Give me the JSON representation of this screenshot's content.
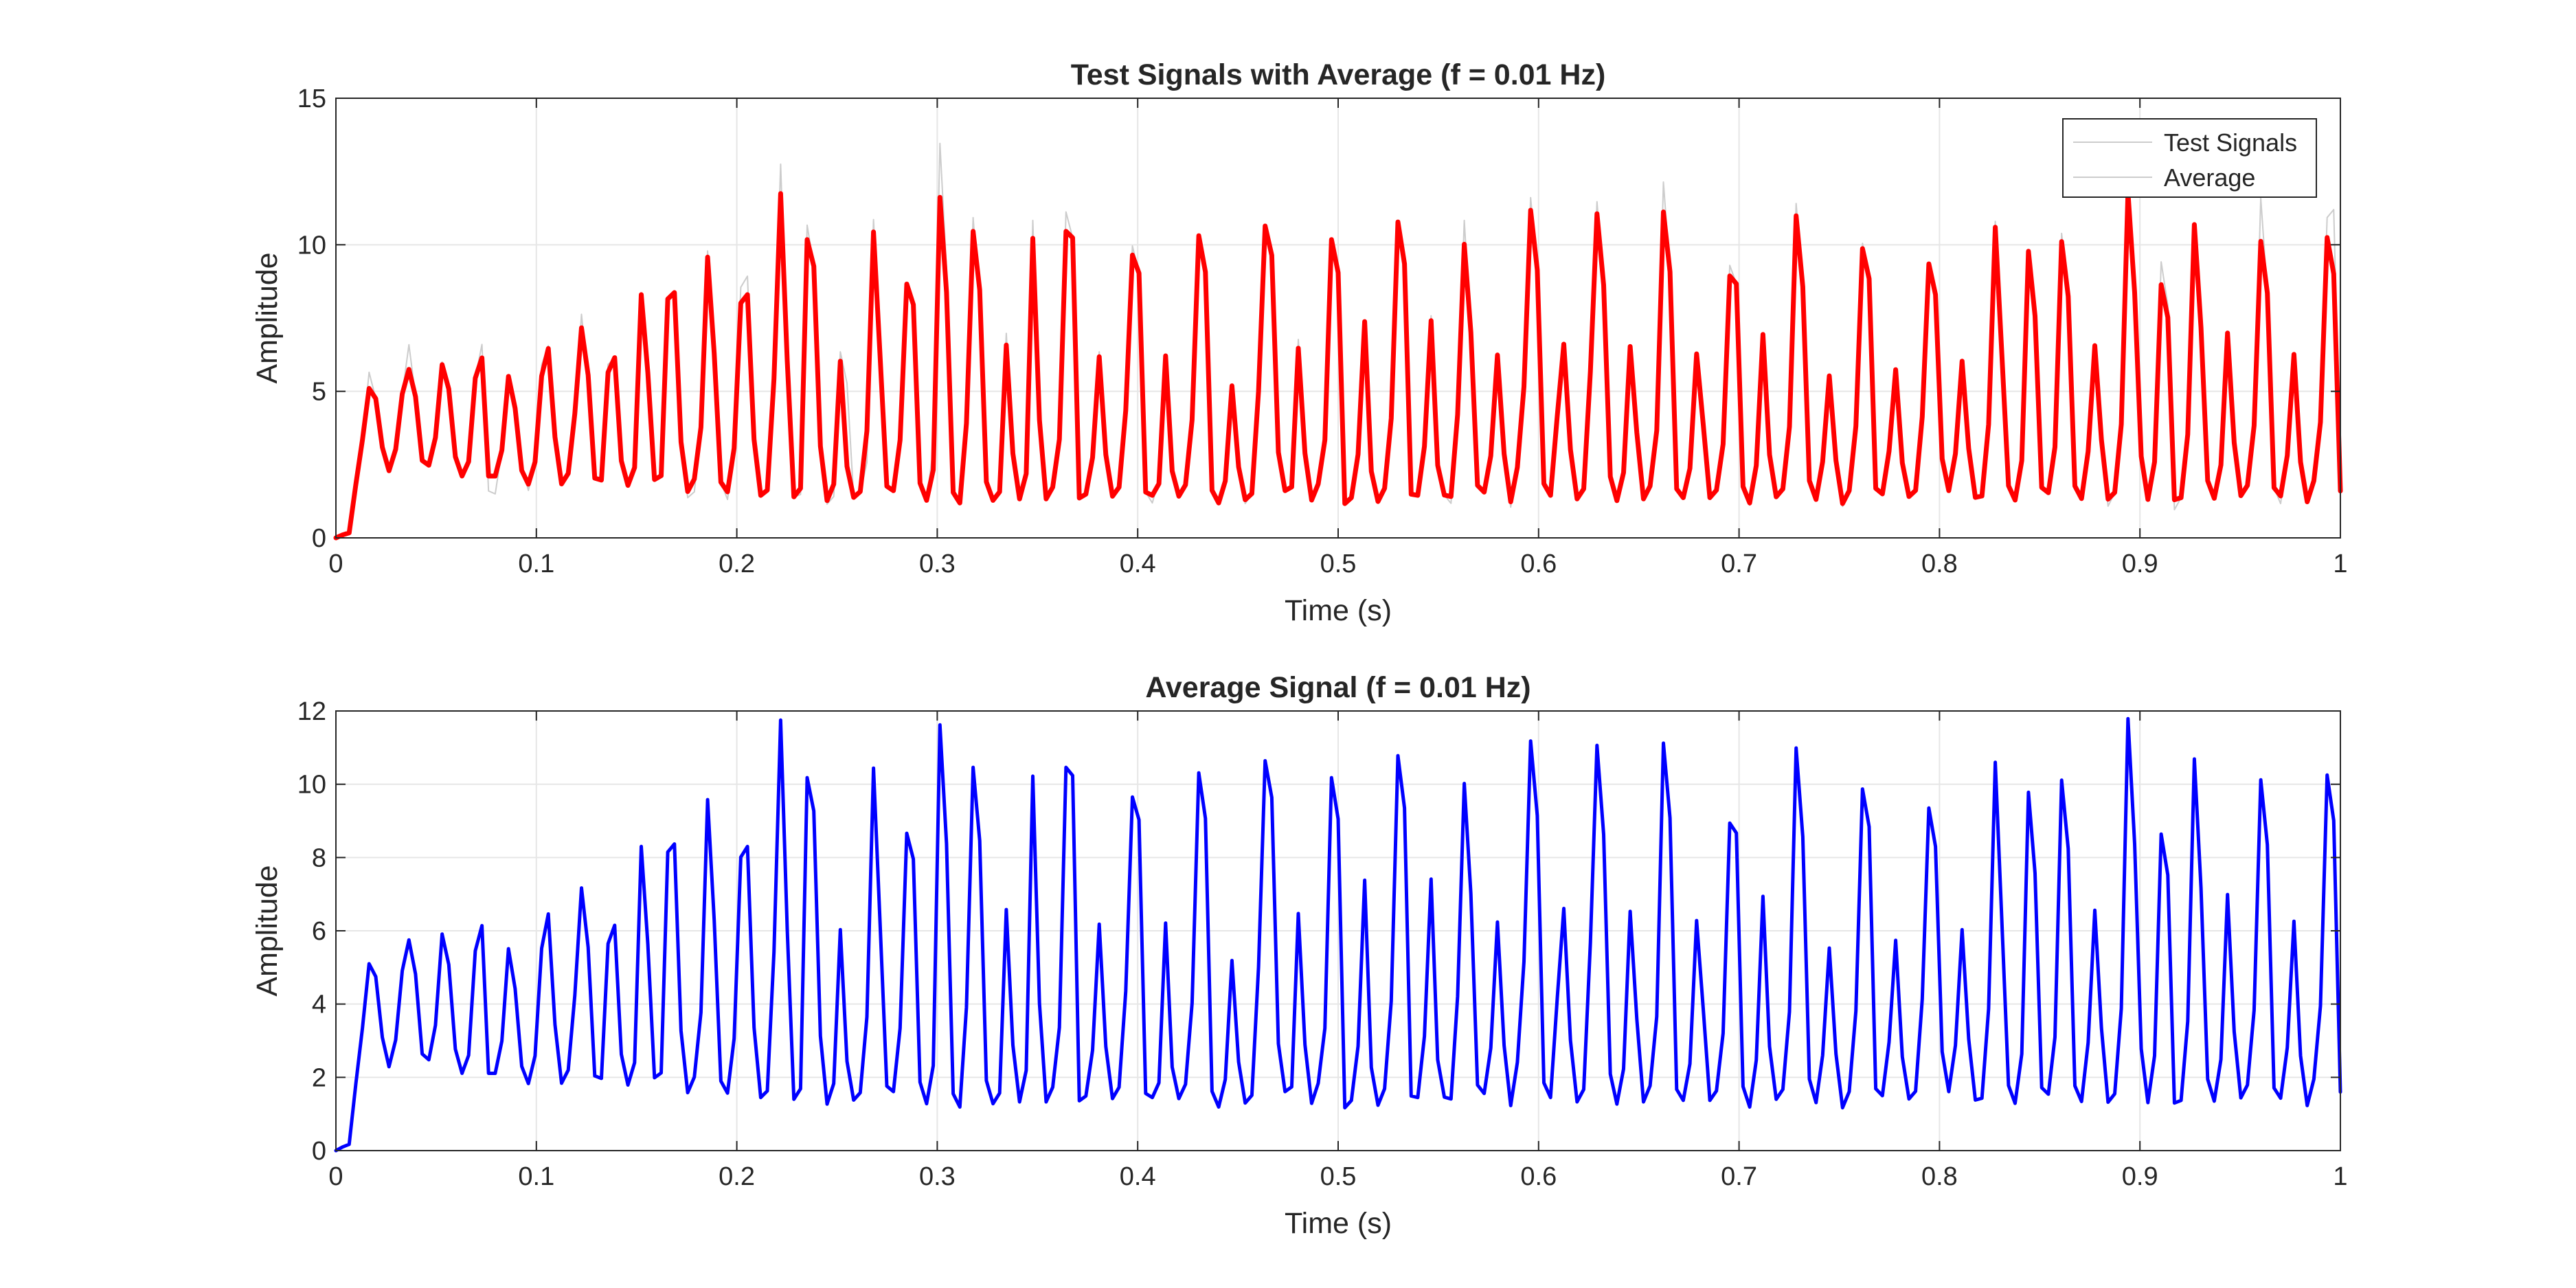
{
  "figure": {
    "background": "#ffffff"
  },
  "chart_data": [
    {
      "type": "line",
      "title": "Test Signals with Average (f = 0.01 Hz)",
      "xlabel": "Time (s)",
      "ylabel": "Amplitude",
      "xlim": [
        0,
        1
      ],
      "ylim": [
        0,
        15
      ],
      "xticks": [
        "0",
        "0.1",
        "0.2",
        "0.3",
        "0.4",
        "0.5",
        "0.6",
        "0.7",
        "0.8",
        "0.9",
        "1"
      ],
      "yticks": [
        "0",
        "5",
        "10",
        "15"
      ],
      "grid": true,
      "legend": {
        "placement": "top-right",
        "entries": [
          "Test Signals",
          "Average"
        ]
      },
      "series": [
        {
          "name": "Test Signals",
          "color": "#cccccc",
          "style": "thin",
          "values": [
            0,
            0.1,
            0.17,
            1.82,
            3.34,
            5.65,
            4.75,
            3.09,
            2.29,
            3.02,
            4.91,
            6.59,
            4.82,
            2.64,
            2.48,
            3.42,
            6.0,
            4.75,
            2.77,
            2.11,
            2.6,
            5.45,
            6.6,
            1.6,
            1.5,
            2.99,
            5.51,
            4.42,
            2.45,
            1.62,
            2.59,
            5.9,
            6.56,
            3.44,
            1.84,
            2.2,
            4.24,
            7.63,
            5.31,
            2.04,
            1.97,
            5.92,
            6.11,
            2.63,
            1.79,
            2.4,
            8.3,
            5.63,
            1.99,
            2.12,
            8.15,
            8.37,
            3.27,
            1.37,
            1.57,
            3.77,
            9.79,
            6.29,
            1.9,
            1.31,
            3.06,
            8.55,
            8.93,
            3.36,
            1.45,
            1.63,
            5.42,
            12.75,
            6.05,
            1.4,
            1.48,
            10.67,
            9.27,
            3.39,
            1.15,
            1.41,
            6.35,
            5.28,
            1.38,
            1.51,
            2.57,
            10.86,
            6.5,
            1.76,
            1.61,
            3.45,
            8.48,
            7.96,
            1.87,
            1.28,
            3.05,
            13.46,
            9.17,
            1.55,
            1.15,
            3.91,
            10.93,
            7.97,
            1.91,
            1.28,
            1.64,
            6.98,
            2.86,
            1.31,
            2.19,
            10.83,
            4.02,
            1.31,
            1.81,
            3.58,
            11.12,
            10.24,
            1.36,
            1.49,
            2.87,
            6.35,
            3.33,
            1.44,
            1.76,
            4.35,
            9.96,
            9.03,
            1.56,
            1.19,
            2.0,
            6.07,
            2.28,
            1.36,
            1.81,
            4.03,
            10.31,
            9.07,
            1.62,
            1.19,
            1.94,
            5.19,
            2.42,
            1.17,
            1.51,
            5.0,
            10.37,
            9.64,
            2.92,
            1.61,
            1.74,
            6.77,
            2.89,
            1.29,
            1.77,
            3.34,
            10.02,
            8.84,
            1.17,
            1.37,
            2.85,
            7.16,
            2.27,
            1.24,
            1.67,
            4.08,
            10.49,
            9.35,
            1.49,
            1.43,
            3.12,
            7.58,
            2.53,
            1.46,
            1.18,
            4.21,
            10.83,
            7.01,
            1.79,
            1.56,
            2.8,
            6.24,
            2.87,
            1.05,
            2.41,
            5.16,
            11.61,
            9.14,
            1.85,
            1.45,
            4.14,
            6.61,
            3.01,
            1.33,
            1.67,
            5.67,
            11.47,
            8.63,
            2.09,
            1.21,
            2.23,
            6.53,
            3.59,
            1.33,
            1.77,
            3.66,
            12.14,
            9.08,
            1.67,
            1.37,
            2.37,
            6.28,
            3.89,
            1.37,
            1.63,
            3.2,
            9.3,
            8.67,
            1.75,
            1.11,
            2.47,
            6.94,
            2.84,
            1.4,
            1.67,
            3.79,
            11.41,
            8.57,
            1.95,
            1.31,
            2.6,
            5.53,
            2.64,
            1.07,
            1.61,
            3.81,
            10.05,
            8.84,
            1.69,
            1.5,
            2.96,
            5.74,
            2.56,
            1.41,
            1.62,
            4.13,
            9.35,
            8.3,
            2.7,
            1.61,
            2.87,
            6.03,
            3.05,
            1.38,
            1.43,
            3.87,
            10.8,
            6.26,
            1.78,
            1.29,
            2.64,
            9.78,
            7.57,
            1.72,
            1.54,
            3.1,
            10.39,
            8.24,
            1.77,
            1.34,
            2.95,
            6.56,
            3.34,
            1.08,
            1.55,
            3.88,
            11.58,
            8.37,
            2.78,
            1.31,
            2.59,
            9.42,
            7.93,
            0.96,
            1.37,
            3.53,
            10.65,
            7.17,
            1.95,
            1.35,
            2.49,
            6.8,
            3.25,
            1.44,
            1.79,
            3.83,
            11.59,
            8.35,
            1.71,
            1.17,
            2.81,
            6.26,
            2.59,
            1.23,
            1.95,
            3.95,
            10.93,
            11.2,
            2.12
          ]
        },
        {
          "name": "Average",
          "color": "#ff0000",
          "style": "thick",
          "values": [
            0,
            0.1,
            0.17,
            1.82,
            3.34,
            5.1,
            4.75,
            3.09,
            2.29,
            3.02,
            4.91,
            5.75,
            4.82,
            2.64,
            2.48,
            3.42,
            5.91,
            5.08,
            2.77,
            2.11,
            2.6,
            5.45,
            6.14,
            2.11,
            2.11,
            2.99,
            5.51,
            4.42,
            2.3,
            1.83,
            2.59,
            5.52,
            6.46,
            3.44,
            1.84,
            2.2,
            4.24,
            7.17,
            5.55,
            2.04,
            1.97,
            5.65,
            6.15,
            2.63,
            1.79,
            2.4,
            8.3,
            5.63,
            1.99,
            2.12,
            8.15,
            8.37,
            3.27,
            1.58,
            2.01,
            3.77,
            9.58,
            6.29,
            1.9,
            1.57,
            3.06,
            8.01,
            8.3,
            3.36,
            1.45,
            1.63,
            5.42,
            11.75,
            6.05,
            1.4,
            1.69,
            10.18,
            9.27,
            3.13,
            1.27,
            1.83,
            6.03,
            2.44,
            1.38,
            1.58,
            3.65,
            10.44,
            6.14,
            1.76,
            1.61,
            3.34,
            8.66,
            7.96,
            1.87,
            1.28,
            2.32,
            11.62,
            8.38,
            1.55,
            1.19,
            3.91,
            10.46,
            8.46,
            1.91,
            1.28,
            1.57,
            6.58,
            2.88,
            1.33,
            2.19,
            10.22,
            4.02,
            1.33,
            1.73,
            3.36,
            10.46,
            10.24,
            1.36,
            1.49,
            2.74,
            6.18,
            2.84,
            1.42,
            1.73,
            4.35,
            9.65,
            9.03,
            1.56,
            1.45,
            1.85,
            6.21,
            2.28,
            1.42,
            1.81,
            4.03,
            10.31,
            9.07,
            1.62,
            1.19,
            1.94,
            5.19,
            2.42,
            1.3,
            1.51,
            5.0,
            10.64,
            9.64,
            2.92,
            1.61,
            1.74,
            6.47,
            2.89,
            1.29,
            1.84,
            3.34,
            10.18,
            9.05,
            1.17,
            1.37,
            2.85,
            7.38,
            2.27,
            1.24,
            1.69,
            4.08,
            10.78,
            9.35,
            1.49,
            1.45,
            3.12,
            7.41,
            2.48,
            1.46,
            1.41,
            4.21,
            10.02,
            7.01,
            1.79,
            1.56,
            2.8,
            6.24,
            2.87,
            1.23,
            2.41,
            5.16,
            11.18,
            9.14,
            1.85,
            1.45,
            4.14,
            6.61,
            3.01,
            1.33,
            1.67,
            5.67,
            11.06,
            8.63,
            2.09,
            1.27,
            2.23,
            6.53,
            3.59,
            1.33,
            1.77,
            3.66,
            11.12,
            9.08,
            1.67,
            1.37,
            2.37,
            6.28,
            3.89,
            1.37,
            1.63,
            3.2,
            8.94,
            8.67,
            1.75,
            1.19,
            2.47,
            6.94,
            2.84,
            1.4,
            1.67,
            3.79,
            10.99,
            8.57,
            1.95,
            1.31,
            2.6,
            5.53,
            2.64,
            1.17,
            1.61,
            3.81,
            9.87,
            8.84,
            1.69,
            1.5,
            2.96,
            5.74,
            2.56,
            1.41,
            1.62,
            4.13,
            9.35,
            8.3,
            2.7,
            1.61,
            2.87,
            6.03,
            3.05,
            1.38,
            1.43,
            3.87,
            10.6,
            6.26,
            1.78,
            1.29,
            2.64,
            9.78,
            7.57,
            1.72,
            1.54,
            3.1,
            10.11,
            8.24,
            1.77,
            1.34,
            2.95,
            6.56,
            3.34,
            1.32,
            1.55,
            3.88,
            11.79,
            8.37,
            2.78,
            1.31,
            2.59,
            8.64,
            7.52,
            1.3,
            1.37,
            3.53,
            10.69,
            7.17,
            1.95,
            1.35,
            2.49,
            6.99,
            3.25,
            1.44,
            1.79,
            3.83,
            10.12,
            8.35,
            1.71,
            1.43,
            2.81,
            6.26,
            2.59,
            1.23,
            1.95,
            3.95,
            10.25,
            9.01,
            1.6
          ]
        }
      ]
    },
    {
      "type": "line",
      "title": "Average Signal (f = 0.01 Hz)",
      "xlabel": "Time (s)",
      "ylabel": "Amplitude",
      "xlim": [
        0,
        1
      ],
      "ylim": [
        0,
        12
      ],
      "xticks": [
        "0",
        "0.1",
        "0.2",
        "0.3",
        "0.4",
        "0.5",
        "0.6",
        "0.7",
        "0.8",
        "0.9",
        "1"
      ],
      "yticks": [
        "0",
        "2",
        "4",
        "6",
        "8",
        "10",
        "12"
      ],
      "grid": true,
      "series": [
        {
          "color": "#0000ff",
          "style": "medium",
          "values": [
            0,
            0.1,
            0.17,
            1.82,
            3.34,
            5.1,
            4.75,
            3.09,
            2.29,
            3.02,
            4.91,
            5.75,
            4.82,
            2.64,
            2.48,
            3.42,
            5.91,
            5.08,
            2.77,
            2.11,
            2.6,
            5.45,
            6.14,
            2.11,
            2.11,
            2.99,
            5.51,
            4.42,
            2.3,
            1.83,
            2.59,
            5.52,
            6.46,
            3.44,
            1.84,
            2.2,
            4.24,
            7.17,
            5.55,
            2.04,
            1.97,
            5.65,
            6.15,
            2.63,
            1.79,
            2.4,
            8.3,
            5.63,
            1.99,
            2.12,
            8.15,
            8.37,
            3.27,
            1.58,
            2.01,
            3.77,
            9.58,
            6.29,
            1.9,
            1.57,
            3.06,
            8.01,
            8.3,
            3.36,
            1.45,
            1.63,
            5.42,
            11.75,
            6.05,
            1.4,
            1.69,
            10.18,
            9.27,
            3.13,
            1.27,
            1.83,
            6.03,
            2.44,
            1.38,
            1.58,
            3.65,
            10.44,
            6.14,
            1.76,
            1.61,
            3.34,
            8.66,
            7.96,
            1.87,
            1.28,
            2.32,
            11.62,
            8.38,
            1.55,
            1.19,
            3.91,
            10.46,
            8.46,
            1.91,
            1.28,
            1.57,
            6.58,
            2.88,
            1.33,
            2.19,
            10.22,
            4.02,
            1.33,
            1.73,
            3.36,
            10.46,
            10.24,
            1.36,
            1.49,
            2.74,
            6.18,
            2.84,
            1.42,
            1.73,
            4.35,
            9.65,
            9.03,
            1.56,
            1.45,
            1.85,
            6.21,
            2.28,
            1.42,
            1.81,
            4.03,
            10.31,
            9.07,
            1.62,
            1.19,
            1.94,
            5.19,
            2.42,
            1.3,
            1.51,
            5.0,
            10.64,
            9.64,
            2.92,
            1.61,
            1.74,
            6.47,
            2.89,
            1.29,
            1.84,
            3.34,
            10.18,
            9.05,
            1.17,
            1.37,
            2.85,
            7.38,
            2.27,
            1.24,
            1.69,
            4.08,
            10.78,
            9.35,
            1.49,
            1.45,
            3.12,
            7.41,
            2.48,
            1.46,
            1.41,
            4.21,
            10.02,
            7.01,
            1.79,
            1.56,
            2.8,
            6.24,
            2.87,
            1.23,
            2.41,
            5.16,
            11.18,
            9.14,
            1.85,
            1.45,
            4.14,
            6.61,
            3.01,
            1.33,
            1.67,
            5.67,
            11.06,
            8.63,
            2.09,
            1.27,
            2.23,
            6.53,
            3.59,
            1.33,
            1.77,
            3.66,
            11.12,
            9.08,
            1.67,
            1.37,
            2.37,
            6.28,
            3.89,
            1.37,
            1.63,
            3.2,
            8.94,
            8.67,
            1.75,
            1.19,
            2.47,
            6.94,
            2.84,
            1.4,
            1.67,
            3.79,
            10.99,
            8.57,
            1.95,
            1.31,
            2.6,
            5.53,
            2.64,
            1.17,
            1.61,
            3.81,
            9.87,
            8.84,
            1.69,
            1.5,
            2.96,
            5.74,
            2.56,
            1.41,
            1.62,
            4.13,
            9.35,
            8.3,
            2.7,
            1.61,
            2.87,
            6.03,
            3.05,
            1.38,
            1.43,
            3.87,
            10.6,
            6.26,
            1.78,
            1.29,
            2.64,
            9.78,
            7.57,
            1.72,
            1.54,
            3.1,
            10.11,
            8.24,
            1.77,
            1.34,
            2.95,
            6.56,
            3.34,
            1.32,
            1.55,
            3.88,
            11.79,
            8.37,
            2.78,
            1.31,
            2.59,
            8.64,
            7.52,
            1.3,
            1.37,
            3.53,
            10.69,
            7.17,
            1.95,
            1.35,
            2.49,
            6.99,
            3.25,
            1.44,
            1.79,
            3.83,
            10.12,
            8.35,
            1.71,
            1.43,
            2.81,
            6.26,
            2.59,
            1.23,
            1.95,
            3.95,
            10.25,
            9.01,
            1.6
          ]
        }
      ]
    }
  ]
}
